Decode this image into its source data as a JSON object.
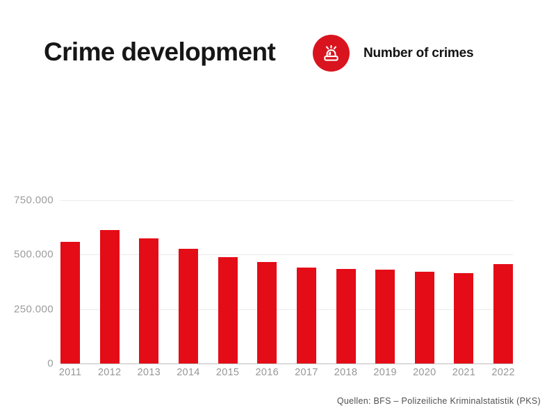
{
  "header": {
    "title": "Crime development",
    "legend": {
      "icon": "siren-icon",
      "label": "Number of crimes"
    }
  },
  "colors": {
    "bar": "#e40c17",
    "icon_circle": "#d9141f",
    "icon_glyph": "#ffffff",
    "title_text": "#161616",
    "axis_label": "#9c9c9c",
    "gridline": "#ebebeb",
    "baseline": "#bdbdbd",
    "source_text": "#4f4f4f"
  },
  "chart_data": {
    "type": "bar",
    "title": "Crime development",
    "series_name": "Number of crimes",
    "categories": [
      "2011",
      "2012",
      "2013",
      "2014",
      "2015",
      "2016",
      "2017",
      "2018",
      "2019",
      "2020",
      "2021",
      "2022"
    ],
    "values": [
      560000,
      614000,
      576000,
      527000,
      488000,
      467000,
      439000,
      433000,
      432000,
      420000,
      414000,
      457000
    ],
    "xlabel": "",
    "ylabel": "",
    "ylim": [
      0,
      750000
    ],
    "yticks": [
      {
        "value": 750000,
        "label": "750.000"
      },
      {
        "value": 500000,
        "label": "500.000"
      },
      {
        "value": 250000,
        "label": "250.000"
      },
      {
        "value": 0,
        "label": "0"
      }
    ],
    "grid": "horizontal",
    "legend_position": "top-right",
    "bar_color": "#e40c17"
  },
  "footer": {
    "source": "Quellen: BFS – Polizeiliche Kriminalstatistik (PKS)"
  }
}
